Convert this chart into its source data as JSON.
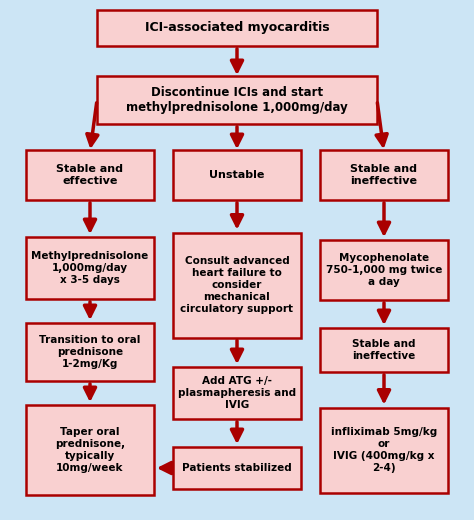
{
  "bg_color": "#cce5f5",
  "box_fill": "#f9d0d0",
  "box_edge": "#aa0000",
  "arrow_color": "#aa0000",
  "text_color": "#000000",
  "title_text": "ICI-associated myocarditis",
  "node2_text": "Discontinue ICIs and start\nmethylprednisolone 1,000mg/day",
  "left_n1": "Stable and\neffective",
  "left_n2": "Methylprednisolone\n1,000mg/day\nx 3-5 days",
  "left_n3": "Transition to oral\nprednisone\n1-2mg/Kg",
  "left_n4": "Taper oral\nprednisone,\ntypically\n10mg/week",
  "mid_n1": "Unstable",
  "mid_n2": "Consult advanced\nheart failure to\nconsider\nmechanical\ncirculatory support",
  "mid_n3": "Add ATG +/-\nplasmapheresis and\nIVIG",
  "mid_n4": "Patients stabilized",
  "right_n1": "Stable and\nineffective",
  "right_n2": "Mycophenolate\n750-1,000 mg twice\na day",
  "right_n3": "Stable and\nineffective",
  "right_n4": "infliximab 5mg/kg\nor\nIVIG (400mg/kg x\n2-4)"
}
